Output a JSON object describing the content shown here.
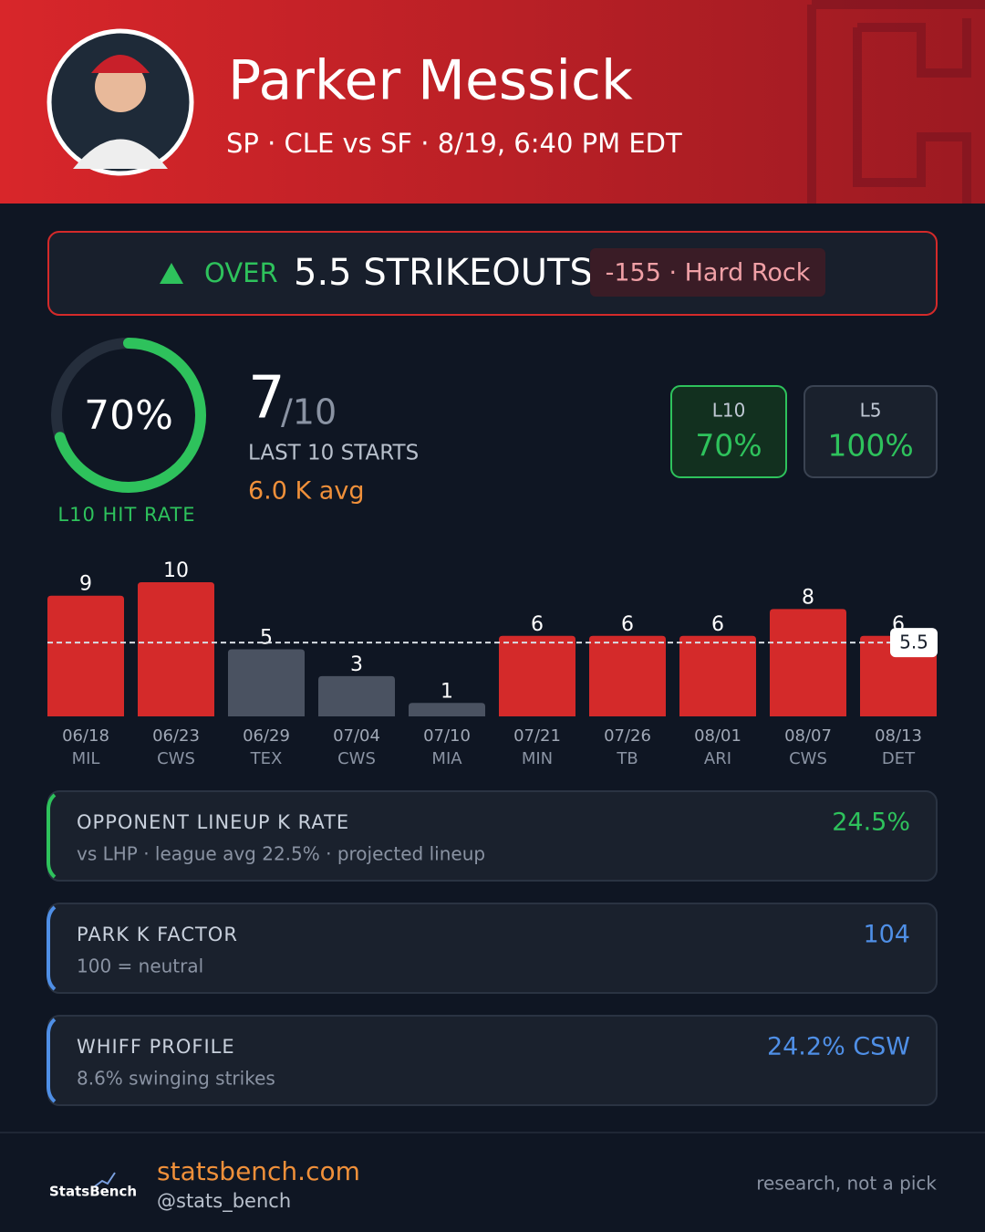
{
  "header": {
    "name": "Parker Messick",
    "subtitle": "SP · CLE vs SF · 8/19, 6:40 PM EDT"
  },
  "pick": {
    "direction": "OVER",
    "line": "5.5 STRIKEOUTS",
    "odds": "-155 · Hard Rock"
  },
  "hit_rate": {
    "value": 70,
    "label": "70%",
    "caption": "L10 HIT RATE"
  },
  "record": {
    "hits": 7,
    "total": "/10",
    "caption": "LAST 10 STARTS",
    "average": "6.0 K avg"
  },
  "chips": [
    {
      "label": "L10",
      "value": "70%"
    },
    {
      "label": "L5",
      "value": "100%"
    }
  ],
  "chart_data": {
    "type": "bar",
    "categories": [
      "06/18",
      "06/23",
      "06/29",
      "07/04",
      "07/10",
      "07/21",
      "07/26",
      "08/01",
      "08/07",
      "08/13"
    ],
    "opponents": [
      "MIL",
      "CWS",
      "TEX",
      "CWS",
      "MIA",
      "MIN",
      "TB",
      "ARI",
      "CWS",
      "DET"
    ],
    "values": [
      9,
      10,
      5,
      3,
      1,
      6,
      6,
      6,
      8,
      6
    ],
    "line": 5.5,
    "hit_color": "#d42a2a",
    "miss_color": "#4a5261"
  },
  "cards": [
    {
      "title": "OPPONENT LINEUP K RATE",
      "subtitle": "vs LHP · league avg 22.5% · projected lineup",
      "value": "24.5%",
      "color": "#2ec25c"
    },
    {
      "title": "PARK K FACTOR",
      "subtitle": "100 = neutral",
      "value": "104",
      "color": "#4f8fe6"
    },
    {
      "title": "WHIFF PROFILE",
      "subtitle": "8.6% swinging strikes",
      "value": "24.2% CSW",
      "color": "#4f8fe6"
    }
  ],
  "footer": {
    "logo": "StatsBench",
    "site": "statsbench.com",
    "handle": "@stats_bench",
    "note": "research, not a pick"
  }
}
